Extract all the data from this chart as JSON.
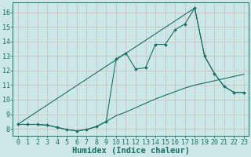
{
  "background_color": "#cce8e6",
  "grid_color": "#b0d4d0",
  "line_color": "#1a7068",
  "xlabel": "Humidex (Indice chaleur)",
  "xlabel_fontsize": 7.5,
  "tick_fontsize": 6,
  "xlim": [
    -0.5,
    23.5
  ],
  "ylim": [
    7.5,
    16.7
  ],
  "yticks": [
    8,
    9,
    10,
    11,
    12,
    13,
    14,
    15,
    16
  ],
  "xticks": [
    0,
    1,
    2,
    3,
    4,
    5,
    6,
    7,
    8,
    9,
    10,
    11,
    12,
    13,
    14,
    15,
    16,
    17,
    18,
    19,
    20,
    21,
    22,
    23
  ],
  "line_smooth_x": [
    0,
    1,
    2,
    3,
    4,
    5,
    6,
    7,
    8,
    9,
    10,
    11,
    12,
    13,
    14,
    15,
    16,
    17,
    18,
    19,
    20,
    21,
    22,
    23
  ],
  "line_smooth_y": [
    8.3,
    8.3,
    8.3,
    8.25,
    8.1,
    7.95,
    7.85,
    7.95,
    8.15,
    8.5,
    8.9,
    9.15,
    9.45,
    9.75,
    10.05,
    10.3,
    10.55,
    10.8,
    11.0,
    11.15,
    11.3,
    11.45,
    11.6,
    11.75
  ],
  "line_main_x": [
    0,
    1,
    2,
    3,
    4,
    5,
    6,
    7,
    8,
    9,
    10,
    11,
    12,
    13,
    14,
    15,
    16,
    17,
    18,
    19,
    20,
    21,
    22,
    23
  ],
  "line_main_y": [
    8.3,
    8.3,
    8.3,
    8.25,
    8.1,
    7.95,
    7.85,
    7.95,
    8.15,
    8.5,
    12.8,
    13.2,
    12.1,
    12.2,
    13.8,
    13.8,
    14.8,
    15.2,
    16.3,
    13.0,
    11.8,
    10.9,
    10.5,
    10.5
  ],
  "line_envelope_x": [
    0,
    18,
    19,
    20,
    21,
    22,
    23
  ],
  "line_envelope_y": [
    8.3,
    16.3,
    13.0,
    11.8,
    10.9,
    10.5,
    10.5
  ]
}
